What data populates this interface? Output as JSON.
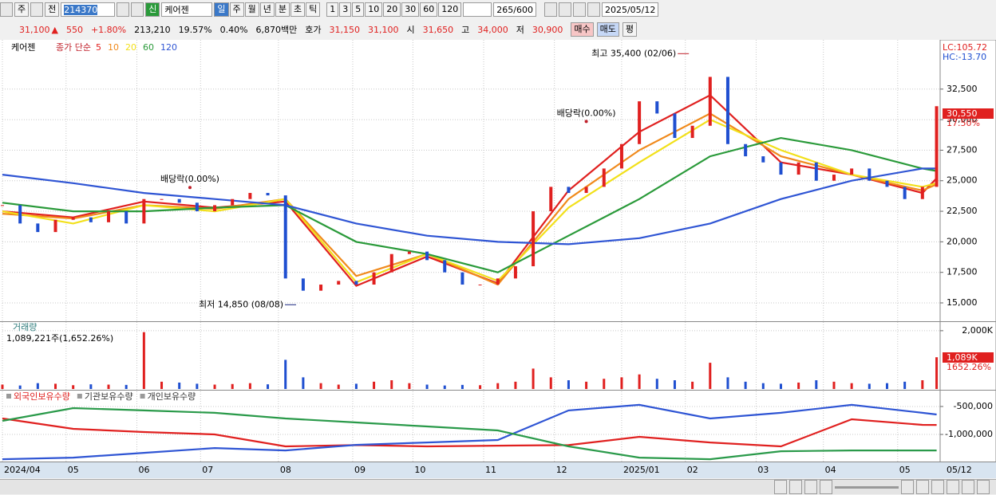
{
  "toolbar": {
    "period_label": "주",
    "mode": "전",
    "code": "214370",
    "badge": "신",
    "name": "케어젠",
    "periods": [
      "일",
      "주",
      "월",
      "년",
      "분",
      "초",
      "틱"
    ],
    "intervals": [
      "1",
      "3",
      "5",
      "10",
      "20",
      "30",
      "60",
      "120"
    ],
    "count": "265/600",
    "date": "2025/05/12"
  },
  "quote": {
    "price": "31,100",
    "change": "550",
    "change_pct": "+1.80%",
    "volume": "213,210",
    "turnover": "19.57%",
    "ratio": "0.40%",
    "amount": "6,870백만",
    "ask_label": "호가",
    "ask": "31,150",
    "bid": "31,100",
    "open_label": "시",
    "open": "31,650",
    "high_label": "고",
    "high": "34,000",
    "low_label": "저",
    "low": "30,900",
    "buy": "매수",
    "sell": "매도",
    "avg": "평"
  },
  "chart_data": [
    {
      "type": "candlestick",
      "title": "케어젠",
      "legend_label": "종가 단순",
      "up_color": "#e0201f",
      "down_color": "#1f4fd0",
      "grid": true,
      "x": [
        0,
        5,
        10,
        15,
        20,
        25,
        30,
        35,
        40,
        45,
        50,
        55,
        60,
        65,
        70,
        75,
        80,
        85,
        90,
        95,
        100,
        105,
        110,
        115,
        120,
        125,
        130,
        135,
        140,
        145,
        150,
        155,
        160,
        165,
        170,
        175,
        180,
        185,
        190,
        195,
        200,
        205,
        210,
        215,
        220,
        225,
        230,
        235,
        240,
        245,
        250,
        255,
        260,
        264
      ],
      "values": [
        23000,
        21500,
        20800,
        21800,
        22000,
        21600,
        22500,
        21500,
        23500,
        23500,
        23200,
        22500,
        23000,
        23500,
        24000,
        23800,
        17000,
        16000,
        16500,
        16800,
        16500,
        17500,
        19000,
        19200,
        18500,
        17500,
        16500,
        16500,
        17000,
        18000,
        22500,
        24500,
        24000,
        24500,
        26000,
        28000,
        31500,
        30500,
        28500,
        29500,
        33500,
        28000,
        27000,
        26500,
        25500,
        26500,
        25000,
        25500,
        26000,
        25000,
        24500,
        23500,
        24500,
        31100
      ],
      "series": [
        {
          "name": "5",
          "color": "#e0201f",
          "x": [
            0,
            20,
            40,
            60,
            80,
            100,
            120,
            140,
            160,
            180,
            200,
            220,
            240,
            260,
            264
          ],
          "values": [
            22500,
            22000,
            23300,
            22800,
            23300,
            16400,
            18800,
            16600,
            24200,
            29000,
            32000,
            26500,
            25500,
            24000,
            25200
          ]
        },
        {
          "name": "10",
          "color": "#f08a1c",
          "x": [
            0,
            20,
            40,
            60,
            80,
            100,
            120,
            140,
            160,
            180,
            200,
            220,
            240,
            260,
            264
          ],
          "values": [
            22300,
            21900,
            23000,
            22700,
            23500,
            17200,
            19000,
            16500,
            23500,
            27500,
            30500,
            27000,
            25500,
            24200,
            24700
          ]
        },
        {
          "name": "20",
          "color": "#f2e01a",
          "x": [
            0,
            20,
            40,
            60,
            80,
            100,
            120,
            140,
            160,
            180,
            200,
            220,
            240,
            260,
            264
          ],
          "values": [
            22500,
            21500,
            23000,
            22500,
            23500,
            16700,
            19000,
            16800,
            22800,
            26500,
            30000,
            27500,
            25500,
            24500,
            24800
          ]
        },
        {
          "name": "60",
          "color": "#2a9a3a",
          "x": [
            0,
            20,
            40,
            60,
            80,
            100,
            120,
            140,
            160,
            180,
            200,
            220,
            240,
            260,
            264
          ],
          "values": [
            23200,
            22500,
            22500,
            22800,
            23000,
            20000,
            19000,
            17500,
            20500,
            23500,
            27000,
            28500,
            27500,
            26000,
            25800
          ]
        },
        {
          "name": "120",
          "color": "#2f55d4",
          "x": [
            0,
            20,
            40,
            60,
            80,
            100,
            120,
            140,
            160,
            180,
            200,
            220,
            240,
            260,
            264
          ],
          "values": [
            25500,
            24800,
            24000,
            23500,
            23000,
            21500,
            20500,
            20000,
            19800,
            20300,
            21500,
            23500,
            25000,
            26000,
            26000
          ]
        }
      ],
      "xlim": [
        0,
        265
      ],
      "xticks": [
        {
          "value": 0,
          "label": "2024/04"
        },
        {
          "value": 18,
          "label": "05"
        },
        {
          "value": 38,
          "label": "06"
        },
        {
          "value": 56,
          "label": "07"
        },
        {
          "value": 78,
          "label": "08"
        },
        {
          "value": 99,
          "label": "09"
        },
        {
          "value": 116,
          "label": "10"
        },
        {
          "value": 136,
          "label": "11"
        },
        {
          "value": 156,
          "label": "12"
        },
        {
          "value": 175,
          "label": "2025/01"
        },
        {
          "value": 193,
          "label": "02"
        },
        {
          "value": 213,
          "label": "03"
        },
        {
          "value": 232,
          "label": "04"
        },
        {
          "value": 253,
          "label": "05"
        }
      ],
      "last_label": "05/12",
      "ylim": [
        13500,
        36400
      ],
      "yticks": [
        {
          "value": 15000,
          "label": "15,000"
        },
        {
          "value": 17500,
          "label": "17,500"
        },
        {
          "value": 20000,
          "label": "20,000"
        },
        {
          "value": 22500,
          "label": "22,500"
        },
        {
          "value": 25000,
          "label": "25,000"
        },
        {
          "value": 27500,
          "label": "27,500"
        },
        {
          "value": 30000,
          "label": "30,000"
        },
        {
          "value": 32500,
          "label": "32,500"
        }
      ],
      "high_label": {
        "text": "최고 35,400 (02/06)",
        "x": 194,
        "y": 35400
      },
      "low_label": {
        "text": "최저 14,850 (08/08)",
        "x": 83,
        "y": 14850
      },
      "dividend_labels": [
        {
          "text": "배당락(0.00%)",
          "x": 53,
          "y": 25100
        },
        {
          "text": "배당락(0.00%)",
          "x": 165,
          "y": 30500
        }
      ],
      "lc": "LC:105.72",
      "hc": "HC:-13.70",
      "price_box": "30,550",
      "price_pct": "17.50%"
    },
    {
      "type": "bar",
      "title": "거래량",
      "subtitle": "1,089,221주(1,652.26%)",
      "values": [
        150000,
        120000,
        200000,
        180000,
        130000,
        160000,
        150000,
        140000,
        1950000,
        250000,
        220000,
        180000,
        150000,
        170000,
        200000,
        160000,
        1000000,
        400000,
        200000,
        150000,
        180000,
        250000,
        300000,
        200000,
        150000,
        120000,
        140000,
        130000,
        200000,
        250000,
        700000,
        400000,
        300000,
        250000,
        350000,
        400000,
        500000,
        350000,
        300000,
        250000,
        900000,
        400000,
        250000,
        200000,
        180000,
        220000,
        300000,
        250000,
        200000,
        180000,
        200000,
        250000,
        300000,
        1089221
      ],
      "ylim": [
        0,
        2270000
      ],
      "yticks": [
        {
          "value": 2000000,
          "label": "2,000K"
        }
      ],
      "last_box": "1,089K",
      "last_pct": "1652.26%"
    },
    {
      "type": "line",
      "series": [
        {
          "name": "외국인보유수량",
          "color": "#e0201f",
          "x": [
            0,
            20,
            40,
            60,
            80,
            100,
            120,
            140,
            160,
            180,
            200,
            220,
            240,
            260,
            264
          ],
          "values": [
            -714000,
            -900000,
            -957000,
            -1000000,
            -1214000,
            -1190000,
            -1214000,
            -1200000,
            -1190000,
            -1043000,
            -1143000,
            -1214000,
            -729000,
            -829000,
            -830000
          ]
        },
        {
          "name": "기관보유수량",
          "color": "#2f55d4",
          "x": [
            0,
            20,
            40,
            60,
            80,
            100,
            120,
            140,
            160,
            180,
            200,
            220,
            240,
            260,
            264
          ],
          "values": [
            -1443000,
            -1414000,
            -1329000,
            -1243000,
            -1286000,
            -1186000,
            -1143000,
            -1100000,
            -571000,
            -471000,
            -714000,
            -614000,
            -471000,
            -614000,
            -643000
          ]
        },
        {
          "name": "개인보유수량",
          "color": "#2a9a4a",
          "x": [
            0,
            20,
            40,
            60,
            80,
            100,
            120,
            140,
            160,
            180,
            200,
            220,
            240,
            260,
            264
          ],
          "values": [
            -757000,
            -529000,
            -571000,
            -614000,
            -714000,
            -786000,
            -857000,
            -929000,
            -1214000,
            -1414000,
            -1443000,
            -1300000,
            -1286000,
            -1286000,
            -1286000
          ]
        }
      ],
      "ylim": [
        -1470000,
        -230000
      ],
      "yticks": [
        {
          "value": -500000,
          "label": "-500,000"
        },
        {
          "value": -1000000,
          "label": "-1,000,000"
        }
      ]
    }
  ]
}
